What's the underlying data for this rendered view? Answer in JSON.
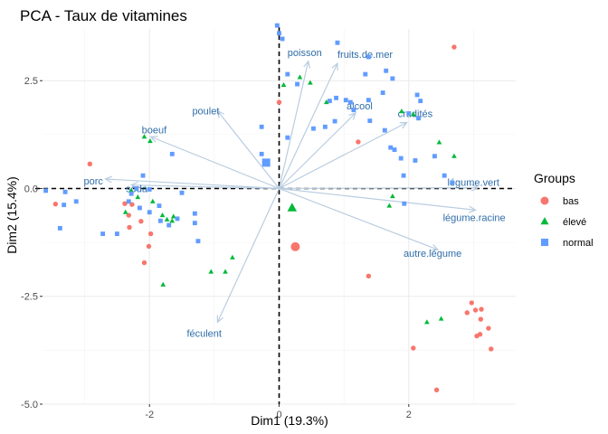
{
  "chart_data": {
    "type": "scatter",
    "title": "PCA - Taux de vitamines",
    "xlabel": "Dim1 (19.3%)",
    "ylabel": "Dim2 (15.4%)",
    "xlim": [
      -3.65,
      3.65
    ],
    "ylim": [
      -5.0,
      3.7
    ],
    "xticks": [
      -2,
      0,
      2
    ],
    "xtick_labels": [
      "-2",
      "0",
      "2"
    ],
    "yticks": [
      -5.0,
      -2.5,
      0.0,
      2.5
    ],
    "ytick_labels": [
      "-5.0",
      "-2.5",
      "0.0",
      "2.5"
    ],
    "grid": true,
    "legend": {
      "title": "Groups",
      "position": "right",
      "items": [
        {
          "label": "bas",
          "shape": "circle",
          "color": "#F8766D"
        },
        {
          "label": "élevé",
          "shape": "triangle",
          "color": "#00BA38"
        },
        {
          "label": "normal",
          "shape": "square",
          "color": "#619CFF"
        }
      ]
    },
    "reference_lines": {
      "x": 0,
      "y": 0,
      "style": "dashed"
    },
    "series": [
      {
        "name": "bas",
        "shape": "circle",
        "color": "#F8766D",
        "points": [
          [
            -3.45,
            -0.36
          ],
          [
            -2.92,
            0.57
          ],
          [
            -2.38,
            -0.35
          ],
          [
            -2.27,
            -0.37
          ],
          [
            -2.32,
            -0.62
          ],
          [
            -2.31,
            -0.9
          ],
          [
            -2.13,
            -0.76
          ],
          [
            -2.08,
            -1.72
          ],
          [
            -2.01,
            -1.34
          ],
          [
            -1.98,
            -1.05
          ],
          [
            0.0,
            2.0
          ],
          [
            2.7,
            3.28
          ],
          [
            1.22,
            1.08
          ],
          [
            1.38,
            -2.03
          ],
          [
            2.97,
            -2.65
          ],
          [
            3.03,
            -2.82
          ],
          [
            3.12,
            -2.8
          ],
          [
            2.9,
            -2.88
          ],
          [
            3.11,
            -3.03
          ],
          [
            3.23,
            -3.24
          ],
          [
            3.1,
            -3.38
          ],
          [
            3.05,
            -3.42
          ],
          [
            3.27,
            -3.72
          ],
          [
            2.07,
            -3.7
          ],
          [
            2.43,
            -4.67
          ]
        ],
        "centroid": [
          0.25,
          -1.35
        ]
      },
      {
        "name": "élevé",
        "shape": "triangle",
        "color": "#00BA38",
        "points": [
          [
            -2.37,
            -0.55
          ],
          [
            -2.08,
            1.2
          ],
          [
            -1.99,
            1.1
          ],
          [
            -2.28,
            -0.05
          ],
          [
            -2.18,
            -0.2
          ],
          [
            -1.95,
            -0.3
          ],
          [
            -1.8,
            -0.62
          ],
          [
            -1.73,
            -0.72
          ],
          [
            -1.65,
            -0.75
          ],
          [
            -1.63,
            -0.65
          ],
          [
            -1.79,
            -2.23
          ],
          [
            -1.05,
            -1.93
          ],
          [
            -0.83,
            -1.93
          ],
          [
            -0.72,
            -1.6
          ],
          [
            0.07,
            2.4
          ],
          [
            0.32,
            2.58
          ],
          [
            0.48,
            2.45
          ],
          [
            0.73,
            2.0
          ],
          [
            1.89,
            1.79
          ],
          [
            2.07,
            1.72
          ],
          [
            2.47,
            1.07
          ],
          [
            2.7,
            0.75
          ],
          [
            1.75,
            -0.18
          ],
          [
            1.7,
            -0.4
          ],
          [
            2.28,
            -3.1
          ],
          [
            2.5,
            -3.02
          ]
        ],
        "centroid": [
          0.2,
          -0.45
        ]
      },
      {
        "name": "normal",
        "shape": "square",
        "color": "#619CFF",
        "points": [
          [
            -3.6,
            -0.05
          ],
          [
            -3.3,
            -0.08
          ],
          [
            -3.32,
            -0.38
          ],
          [
            -3.13,
            -0.3
          ],
          [
            -3.38,
            -0.92
          ],
          [
            -2.72,
            -1.05
          ],
          [
            -2.5,
            -1.05
          ],
          [
            -2.28,
            -0.12
          ],
          [
            -2.2,
            0.0
          ],
          [
            -2.1,
            0.3
          ],
          [
            -2.0,
            -0.02
          ],
          [
            -2.32,
            -0.3
          ],
          [
            -2.15,
            -0.45
          ],
          [
            -2.0,
            -0.55
          ],
          [
            -1.83,
            -0.75
          ],
          [
            -1.7,
            -0.85
          ],
          [
            -1.57,
            -0.7
          ],
          [
            -1.5,
            -0.1
          ],
          [
            -1.3,
            -0.58
          ],
          [
            -1.3,
            -0.8
          ],
          [
            -1.25,
            -1.22
          ],
          [
            -1.85,
            -0.4
          ],
          [
            -1.65,
            0.8
          ],
          [
            -0.27,
            1.43
          ],
          [
            -0.27,
            0.8
          ],
          [
            -0.2,
            0.61
          ],
          [
            -0.03,
            3.78
          ],
          [
            0.0,
            3.6
          ],
          [
            0.05,
            3.47
          ],
          [
            0.13,
            2.65
          ],
          [
            0.13,
            1.18
          ],
          [
            0.28,
            2.42
          ],
          [
            0.53,
            1.39
          ],
          [
            0.71,
            1.43
          ],
          [
            0.78,
            2.03
          ],
          [
            0.86,
            1.56
          ],
          [
            0.88,
            2.1
          ],
          [
            0.9,
            3.38
          ],
          [
            1.03,
            2.05
          ],
          [
            1.1,
            2.0
          ],
          [
            1.15,
            1.82
          ],
          [
            1.38,
            2.05
          ],
          [
            1.4,
            1.57
          ],
          [
            1.6,
            2.22
          ],
          [
            1.63,
            1.35
          ],
          [
            1.65,
            2.73
          ],
          [
            1.75,
            2.55
          ],
          [
            1.72,
            0.95
          ],
          [
            1.78,
            0.9
          ],
          [
            1.88,
            0.7
          ],
          [
            1.92,
            0.3
          ],
          [
            1.93,
            -0.35
          ],
          [
            2.0,
            1.74
          ],
          [
            2.13,
            2.17
          ],
          [
            2.15,
            1.63
          ],
          [
            2.18,
            2.03
          ],
          [
            2.1,
            0.65
          ],
          [
            2.4,
            0.75
          ],
          [
            2.55,
            0.3
          ],
          [
            2.67,
            0.14
          ],
          [
            1.33,
            2.65
          ],
          [
            1.38,
            3.05
          ]
        ],
        "centroid": [
          -0.2,
          0.6
        ]
      }
    ],
    "variables": [
      {
        "name": "fruits.de.mer",
        "x": 0.9,
        "y": 2.9
      },
      {
        "name": "poisson",
        "x": 0.45,
        "y": 2.95
      },
      {
        "name": "alcool",
        "x": 1.18,
        "y": 1.75
      },
      {
        "name": "crudités",
        "x": 1.97,
        "y": 1.53
      },
      {
        "name": "poulet",
        "x": -0.95,
        "y": 1.8
      },
      {
        "name": "boeuf",
        "x": -1.98,
        "y": 1.2
      },
      {
        "name": "porc",
        "x": -2.68,
        "y": 0.22
      },
      {
        "name": "soda",
        "x": -2.28,
        "y": 0.08
      },
      {
        "name": "légume.vert",
        "x": 3.07,
        "y": 0.02
      },
      {
        "name": "légume.racine",
        "x": 3.03,
        "y": -0.5
      },
      {
        "name": "autre.légume",
        "x": 2.45,
        "y": -1.42
      },
      {
        "name": "féculent",
        "x": -0.95,
        "y": -3.1
      }
    ]
  }
}
